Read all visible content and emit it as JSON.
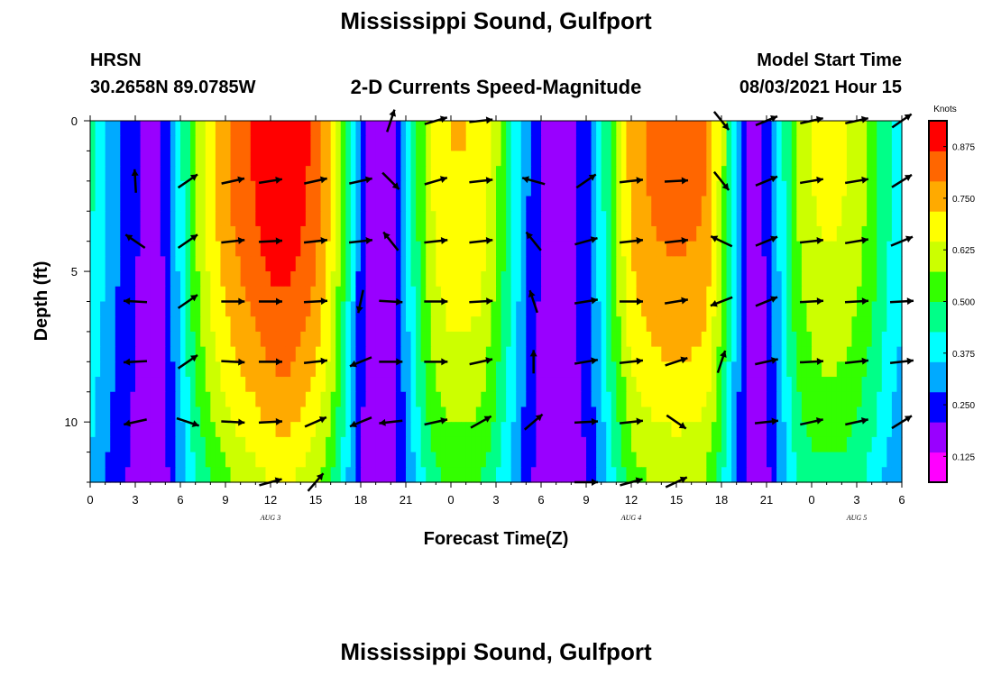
{
  "header": {
    "title": "Mississippi Sound, Gulfport",
    "station_name": "HRSN",
    "station_coords": "30.2658N  89.0785W",
    "subtitle": "2-D Currents Speed-Magnitude",
    "model_start_label": "Model Start Time",
    "model_start_value": "08/03/2021 Hour 15",
    "bottom_title": "Mississippi Sound, Gulfport"
  },
  "chart_data": {
    "type": "heatmap",
    "title": "2-D Currents Speed-Magnitude",
    "xlabel": "Forecast Time(Z)",
    "ylabel": "Depth (ft)",
    "x_tick_labels": [
      "0",
      "3",
      "6",
      "9",
      "12",
      "15",
      "18",
      "21",
      "0",
      "3",
      "6",
      "9",
      "12",
      "15",
      "18",
      "21",
      "0",
      "3",
      "6"
    ],
    "x_range_hours": [
      0,
      54
    ],
    "date_labels": [
      {
        "text": "AUG 3",
        "hour": 12
      },
      {
        "text": "AUG 4",
        "hour": 36
      },
      {
        "text": "AUG 5",
        "hour": 51
      }
    ],
    "y_tick_labels": [
      "0",
      "5",
      "10"
    ],
    "y_range_ft": [
      0,
      12
    ],
    "y_inverted": true,
    "colorbar": {
      "label": "Knots",
      "tick_labels": [
        "0.875",
        "0.750",
        "0.625",
        "0.500",
        "0.375",
        "0.250",
        "0.125"
      ],
      "range": [
        0.0625,
        0.9375
      ],
      "colors": [
        "#ff00ff",
        "#9900ff",
        "#0000ff",
        "#00aaff",
        "#00ffff",
        "#00ff88",
        "#33ff00",
        "#ccff00",
        "#ffff00",
        "#ffaa00",
        "#ff6600",
        "#ff0000"
      ]
    },
    "speed_profile_hours": [
      0,
      1,
      2,
      3,
      4,
      5,
      6,
      7,
      8,
      9,
      10,
      11,
      12,
      13,
      14,
      15,
      16,
      17,
      18,
      19,
      20,
      21,
      22,
      23,
      24,
      25,
      26,
      27,
      28,
      29,
      30,
      31,
      32,
      33,
      34,
      35,
      36,
      37,
      38,
      39,
      40,
      41,
      42,
      43,
      44,
      45,
      46,
      47,
      48,
      49,
      50,
      51,
      52,
      53,
      54
    ],
    "speed_profile_surface_knots": [
      0.45,
      0.36,
      0.28,
      0.22,
      0.18,
      0.22,
      0.4,
      0.58,
      0.7,
      0.78,
      0.84,
      0.88,
      0.92,
      0.93,
      0.9,
      0.84,
      0.72,
      0.5,
      0.25,
      0.14,
      0.18,
      0.35,
      0.55,
      0.68,
      0.72,
      0.72,
      0.7,
      0.6,
      0.45,
      0.3,
      0.2,
      0.17,
      0.2,
      0.25,
      0.4,
      0.6,
      0.75,
      0.8,
      0.82,
      0.83,
      0.82,
      0.8,
      0.62,
      0.35,
      0.18,
      0.22,
      0.4,
      0.58,
      0.65,
      0.67,
      0.66,
      0.62,
      0.55,
      0.45,
      0.38
    ],
    "speed_depth_decay": 0.35,
    "vector_hours": [
      3,
      6.5,
      9.5,
      12,
      15,
      18,
      20,
      23,
      26,
      29.5,
      33,
      36,
      39,
      42,
      45,
      48,
      51,
      54
    ],
    "vector_depths_ft": [
      0,
      2,
      4,
      6,
      8,
      10,
      12
    ],
    "vectors": [
      {
        "hour": 3,
        "depth": 0,
        "u": 0.0,
        "v": 0.0
      },
      {
        "hour": 3,
        "depth": 2,
        "u": -0.05,
        "v": 0.9
      },
      {
        "hour": 3,
        "depth": 4,
        "u": -0.8,
        "v": 0.55
      },
      {
        "hour": 3,
        "depth": 6,
        "u": -0.9,
        "v": 0.05
      },
      {
        "hour": 3,
        "depth": 8,
        "u": -0.9,
        "v": -0.05
      },
      {
        "hour": 3,
        "depth": 10,
        "u": -0.9,
        "v": -0.2
      },
      {
        "hour": 6.5,
        "depth": 2,
        "u": 0.8,
        "v": 0.55
      },
      {
        "hour": 6.5,
        "depth": 4,
        "u": 0.8,
        "v": 0.55
      },
      {
        "hour": 6.5,
        "depth": 6,
        "u": 0.8,
        "v": 0.55
      },
      {
        "hour": 6.5,
        "depth": 8,
        "u": 0.8,
        "v": 0.55
      },
      {
        "hour": 6.5,
        "depth": 10,
        "u": 0.9,
        "v": -0.3
      },
      {
        "hour": 9.5,
        "depth": 2,
        "u": 0.9,
        "v": 0.2
      },
      {
        "hour": 9.5,
        "depth": 4,
        "u": 0.9,
        "v": 0.1
      },
      {
        "hour": 9.5,
        "depth": 6,
        "u": 0.9,
        "v": 0.0
      },
      {
        "hour": 9.5,
        "depth": 8,
        "u": 0.9,
        "v": -0.05
      },
      {
        "hour": 9.5,
        "depth": 10,
        "u": 0.9,
        "v": -0.05
      },
      {
        "hour": 12,
        "depth": 2,
        "u": 0.95,
        "v": 0.15
      },
      {
        "hour": 12,
        "depth": 4,
        "u": 0.95,
        "v": 0.05
      },
      {
        "hour": 12,
        "depth": 6,
        "u": 0.95,
        "v": 0.0
      },
      {
        "hour": 12,
        "depth": 8,
        "u": 0.95,
        "v": 0.0
      },
      {
        "hour": 12,
        "depth": 10,
        "u": 0.95,
        "v": 0.05
      },
      {
        "hour": 12,
        "depth": 12,
        "u": 0.9,
        "v": 0.25
      },
      {
        "hour": 15,
        "depth": 2,
        "u": 0.9,
        "v": 0.2
      },
      {
        "hour": 15,
        "depth": 4,
        "u": 0.9,
        "v": 0.1
      },
      {
        "hour": 15,
        "depth": 6,
        "u": 0.9,
        "v": 0.05
      },
      {
        "hour": 15,
        "depth": 8,
        "u": 0.9,
        "v": 0.1
      },
      {
        "hour": 15,
        "depth": 10,
        "u": 0.8,
        "v": 0.35
      },
      {
        "hour": 15,
        "depth": 12,
        "u": 0.6,
        "v": 0.7
      },
      {
        "hour": 18,
        "depth": 2,
        "u": 0.9,
        "v": 0.2
      },
      {
        "hour": 18,
        "depth": 4,
        "u": 0.9,
        "v": 0.1
      },
      {
        "hour": 18,
        "depth": 6,
        "u": -0.2,
        "v": -0.95
      },
      {
        "hour": 18,
        "depth": 8,
        "u": -0.85,
        "v": -0.35
      },
      {
        "hour": 18,
        "depth": 10,
        "u": -0.85,
        "v": -0.35
      },
      {
        "hour": 20,
        "depth": 0,
        "u": 0.3,
        "v": 0.9
      },
      {
        "hour": 20,
        "depth": 2,
        "u": 0.7,
        "v": -0.7
      },
      {
        "hour": 20,
        "depth": 4,
        "u": -0.6,
        "v": 0.75
      },
      {
        "hour": 20,
        "depth": 6,
        "u": 0.9,
        "v": -0.05
      },
      {
        "hour": 20,
        "depth": 8,
        "u": 0.9,
        "v": 0.0
      },
      {
        "hour": 20,
        "depth": 10,
        "u": -0.9,
        "v": -0.1
      },
      {
        "hour": 23,
        "depth": 0,
        "u": 0.85,
        "v": 0.25
      },
      {
        "hour": 23,
        "depth": 2,
        "u": 0.85,
        "v": 0.25
      },
      {
        "hour": 23,
        "depth": 4,
        "u": 0.9,
        "v": 0.1
      },
      {
        "hour": 23,
        "depth": 6,
        "u": 0.9,
        "v": 0.0
      },
      {
        "hour": 23,
        "depth": 8,
        "u": 0.9,
        "v": 0.0
      },
      {
        "hour": 23,
        "depth": 10,
        "u": 0.9,
        "v": 0.2
      },
      {
        "hour": 26,
        "depth": 0,
        "u": 0.9,
        "v": 0.1
      },
      {
        "hour": 26,
        "depth": 2,
        "u": 0.9,
        "v": 0.1
      },
      {
        "hour": 26,
        "depth": 4,
        "u": 0.9,
        "v": 0.1
      },
      {
        "hour": 26,
        "depth": 6,
        "u": 0.9,
        "v": 0.05
      },
      {
        "hour": 26,
        "depth": 8,
        "u": 0.9,
        "v": 0.2
      },
      {
        "hour": 26,
        "depth": 10,
        "u": 0.8,
        "v": 0.45
      },
      {
        "hour": 29.5,
        "depth": 2,
        "u": -0.9,
        "v": 0.25
      },
      {
        "hour": 29.5,
        "depth": 4,
        "u": -0.6,
        "v": 0.75
      },
      {
        "hour": 29.5,
        "depth": 6,
        "u": -0.3,
        "v": 0.9
      },
      {
        "hour": 29.5,
        "depth": 8,
        "u": 0.0,
        "v": 0.95
      },
      {
        "hour": 29.5,
        "depth": 10,
        "u": 0.7,
        "v": 0.6
      },
      {
        "hour": 33,
        "depth": 2,
        "u": 0.8,
        "v": 0.55
      },
      {
        "hour": 33,
        "depth": 4,
        "u": 0.9,
        "v": 0.25
      },
      {
        "hour": 33,
        "depth": 6,
        "u": 0.9,
        "v": 0.15
      },
      {
        "hour": 33,
        "depth": 8,
        "u": 0.9,
        "v": 0.15
      },
      {
        "hour": 33,
        "depth": 10,
        "u": 0.9,
        "v": 0.05
      },
      {
        "hour": 33,
        "depth": 12,
        "u": 0.9,
        "v": 0.0
      },
      {
        "hour": 36,
        "depth": 2,
        "u": 0.9,
        "v": 0.1
      },
      {
        "hour": 36,
        "depth": 4,
        "u": 0.9,
        "v": 0.1
      },
      {
        "hour": 36,
        "depth": 6,
        "u": 0.9,
        "v": 0.0
      },
      {
        "hour": 36,
        "depth": 8,
        "u": 0.9,
        "v": 0.1
      },
      {
        "hour": 36,
        "depth": 10,
        "u": 0.9,
        "v": 0.1
      },
      {
        "hour": 36,
        "depth": 12,
        "u": 0.9,
        "v": 0.25
      },
      {
        "hour": 39,
        "depth": 2,
        "u": 0.9,
        "v": 0.05
      },
      {
        "hour": 39,
        "depth": 4,
        "u": 0.9,
        "v": 0.1
      },
      {
        "hour": 39,
        "depth": 6,
        "u": 0.9,
        "v": 0.15
      },
      {
        "hour": 39,
        "depth": 8,
        "u": 0.9,
        "v": 0.3
      },
      {
        "hour": 39,
        "depth": 10,
        "u": 0.8,
        "v": -0.55
      },
      {
        "hour": 39,
        "depth": 12,
        "u": 0.85,
        "v": 0.4
      },
      {
        "hour": 42,
        "depth": 0,
        "u": 0.6,
        "v": -0.75
      },
      {
        "hour": 42,
        "depth": 2,
        "u": 0.6,
        "v": -0.75
      },
      {
        "hour": 42,
        "depth": 4,
        "u": -0.85,
        "v": 0.4
      },
      {
        "hour": 42,
        "depth": 6,
        "u": -0.9,
        "v": -0.35
      },
      {
        "hour": 42,
        "depth": 8,
        "u": 0.3,
        "v": 0.9
      },
      {
        "hour": 45,
        "depth": 0,
        "u": 0.85,
        "v": 0.35
      },
      {
        "hour": 45,
        "depth": 2,
        "u": 0.85,
        "v": 0.35
      },
      {
        "hour": 45,
        "depth": 4,
        "u": 0.85,
        "v": 0.35
      },
      {
        "hour": 45,
        "depth": 6,
        "u": 0.85,
        "v": 0.35
      },
      {
        "hour": 45,
        "depth": 8,
        "u": 0.9,
        "v": 0.2
      },
      {
        "hour": 45,
        "depth": 10,
        "u": 0.9,
        "v": 0.1
      },
      {
        "hour": 48,
        "depth": 0,
        "u": 0.9,
        "v": 0.2
      },
      {
        "hour": 48,
        "depth": 2,
        "u": 0.9,
        "v": 0.15
      },
      {
        "hour": 48,
        "depth": 4,
        "u": 0.9,
        "v": 0.1
      },
      {
        "hour": 48,
        "depth": 6,
        "u": 0.9,
        "v": 0.05
      },
      {
        "hour": 48,
        "depth": 8,
        "u": 0.9,
        "v": 0.05
      },
      {
        "hour": 48,
        "depth": 10,
        "u": 0.9,
        "v": 0.2
      },
      {
        "hour": 51,
        "depth": 0,
        "u": 0.9,
        "v": 0.2
      },
      {
        "hour": 51,
        "depth": 2,
        "u": 0.9,
        "v": 0.15
      },
      {
        "hour": 51,
        "depth": 4,
        "u": 0.9,
        "v": 0.15
      },
      {
        "hour": 51,
        "depth": 6,
        "u": 0.9,
        "v": 0.05
      },
      {
        "hour": 51,
        "depth": 8,
        "u": 0.9,
        "v": 0.1
      },
      {
        "hour": 51,
        "depth": 10,
        "u": 0.9,
        "v": 0.2
      },
      {
        "hour": 54,
        "depth": 0,
        "u": 0.8,
        "v": 0.55
      },
      {
        "hour": 54,
        "depth": 2,
        "u": 0.8,
        "v": 0.5
      },
      {
        "hour": 54,
        "depth": 4,
        "u": 0.85,
        "v": 0.35
      },
      {
        "hour": 54,
        "depth": 6,
        "u": 0.9,
        "v": 0.05
      },
      {
        "hour": 54,
        "depth": 8,
        "u": 0.9,
        "v": 0.1
      },
      {
        "hour": 54,
        "depth": 10,
        "u": 0.8,
        "v": 0.5
      }
    ]
  }
}
